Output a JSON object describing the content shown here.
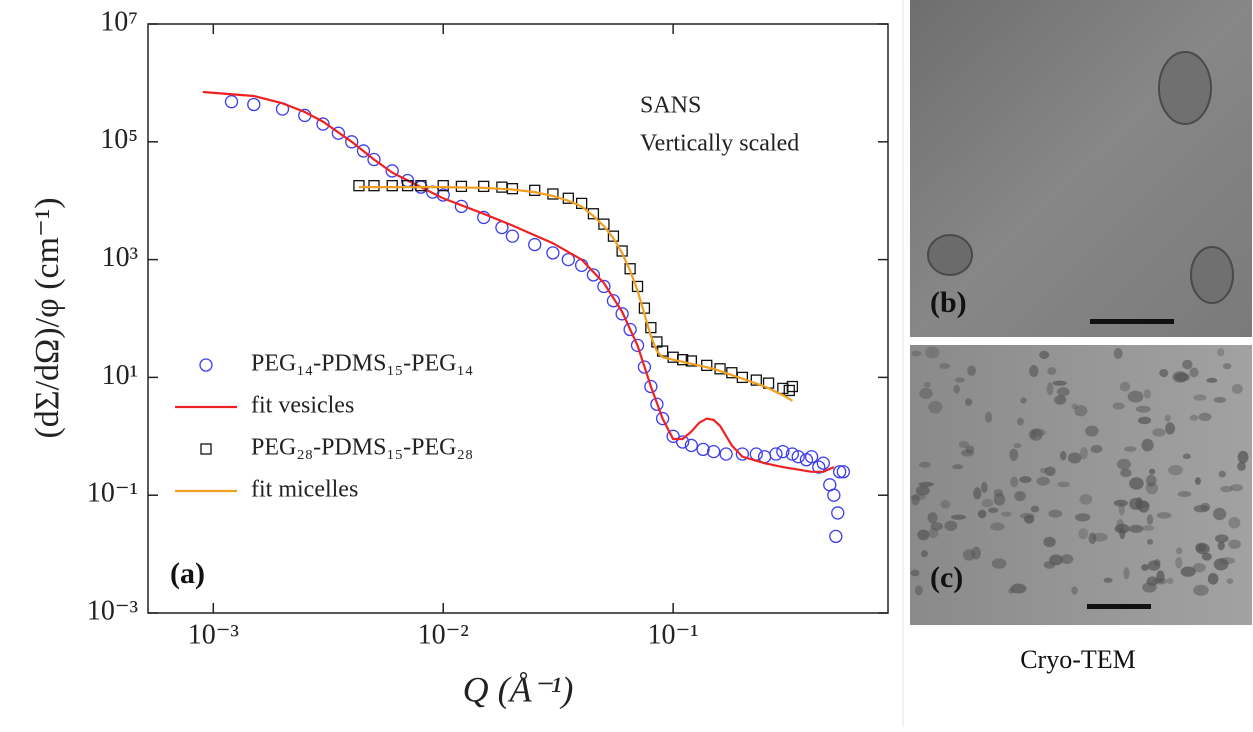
{
  "chart_data": {
    "type": "scatter",
    "xlabel": "Q (Å⁻¹)",
    "ylabel": "(dΣ/dΩ)/φ (cm⁻¹)",
    "annotations": [
      "SANS",
      "Vertically scaled",
      "(a)"
    ],
    "xscale": "log",
    "yscale": "log",
    "xlim": [
      0.00052,
      0.86
    ],
    "ylim": [
      0.001,
      10000000
    ],
    "xticks": [
      {
        "value": 0.001,
        "label": "10⁻³"
      },
      {
        "value": 0.01,
        "label": "10⁻²"
      },
      {
        "value": 0.1,
        "label": "10⁻¹"
      }
    ],
    "yticks": [
      {
        "value": 0.001,
        "label": "10⁻³"
      },
      {
        "value": 0.1,
        "label": "10⁻¹"
      },
      {
        "value": 10,
        "label": "10¹"
      },
      {
        "value": 1000,
        "label": "10³"
      },
      {
        "value": 100000,
        "label": "10⁵"
      },
      {
        "value": 10000000,
        "label": "10⁷"
      }
    ],
    "legend": "center left",
    "series": [
      {
        "name": "PEG₁₄-PDMS₁₅-PEG₁₄",
        "color": "#3b3bf0",
        "mode": "markers",
        "marker": "circle",
        "x": [
          0.0012,
          0.0015,
          0.002,
          0.0025,
          0.003,
          0.0035,
          0.004,
          0.0045,
          0.005,
          0.006,
          0.007,
          0.008,
          0.009,
          0.01,
          0.012,
          0.015,
          0.018,
          0.02,
          0.025,
          0.03,
          0.035,
          0.04,
          0.045,
          0.05,
          0.055,
          0.06,
          0.065,
          0.07,
          0.075,
          0.08,
          0.085,
          0.09,
          0.1,
          0.11,
          0.12,
          0.135,
          0.15,
          0.17,
          0.2,
          0.23,
          0.25,
          0.28,
          0.3,
          0.33,
          0.35,
          0.38,
          0.4,
          0.43,
          0.45,
          0.48,
          0.5,
          0.51,
          0.52,
          0.53,
          0.55
        ],
        "values": [
          480000,
          430000,
          360000,
          280000,
          200000,
          140000,
          100000,
          70000,
          50000,
          32000,
          22000,
          17000,
          14000,
          12500,
          8000,
          5200,
          3500,
          2500,
          1800,
          1300,
          1000,
          800,
          550,
          350,
          200,
          120,
          65,
          35,
          15,
          7,
          3.5,
          2,
          1,
          0.8,
          0.7,
          0.6,
          0.55,
          0.5,
          0.5,
          0.5,
          0.45,
          0.5,
          0.55,
          0.5,
          0.45,
          0.4,
          0.45,
          0.3,
          0.35,
          0.15,
          0.1,
          0.02,
          0.05,
          0.25,
          0.25
        ]
      },
      {
        "name": "fit vesicles",
        "color": "#ee2222",
        "mode": "line",
        "x": [
          0.0009,
          0.0015,
          0.002,
          0.0025,
          0.003,
          0.004,
          0.005,
          0.006,
          0.008,
          0.01,
          0.015,
          0.02,
          0.03,
          0.04,
          0.05,
          0.06,
          0.07,
          0.08,
          0.09,
          0.1,
          0.11,
          0.12,
          0.13,
          0.14,
          0.15,
          0.16,
          0.18,
          0.2,
          0.25,
          0.3,
          0.4,
          0.45,
          0.5
        ],
        "values": [
          700000,
          600000,
          450000,
          320000,
          220000,
          100000,
          50000,
          30000,
          17000,
          11000,
          6000,
          3800,
          1900,
          1000,
          400,
          130,
          35,
          7,
          2,
          0.9,
          0.9,
          1.2,
          1.7,
          2,
          1.9,
          1.5,
          0.7,
          0.45,
          0.35,
          0.3,
          0.25,
          0.25,
          0.3
        ]
      },
      {
        "name": "PEG₂₈-PDMS₁₅-PEG₂₈",
        "color": "#111111",
        "mode": "markers",
        "marker": "square",
        "x": [
          0.0043,
          0.005,
          0.006,
          0.007,
          0.008,
          0.01,
          0.012,
          0.015,
          0.018,
          0.02,
          0.025,
          0.03,
          0.035,
          0.04,
          0.045,
          0.05,
          0.055,
          0.06,
          0.065,
          0.07,
          0.075,
          0.08,
          0.085,
          0.09,
          0.1,
          0.11,
          0.12,
          0.14,
          0.16,
          0.18,
          0.2,
          0.23,
          0.26,
          0.3,
          0.32,
          0.33
        ],
        "values": [
          18000,
          18000,
          18000,
          18000,
          18000,
          18000,
          17500,
          17500,
          17000,
          16000,
          15000,
          13000,
          11000,
          9000,
          6000,
          4000,
          2500,
          1400,
          700,
          350,
          150,
          70,
          40,
          28,
          22,
          20,
          19,
          16,
          14,
          12,
          10,
          9,
          8,
          6.5,
          6,
          7
        ]
      },
      {
        "name": "fit micelles",
        "color": "#f0a020",
        "mode": "line",
        "x": [
          0.0043,
          0.006,
          0.008,
          0.01,
          0.015,
          0.02,
          0.025,
          0.03,
          0.035,
          0.04,
          0.045,
          0.05,
          0.055,
          0.06,
          0.065,
          0.07,
          0.075,
          0.08,
          0.085,
          0.09,
          0.1,
          0.12,
          0.15,
          0.2,
          0.25,
          0.3,
          0.33
        ],
        "values": [
          17000,
          17000,
          17000,
          17000,
          16500,
          15500,
          14000,
          12000,
          10000,
          8000,
          5500,
          3700,
          2300,
          1300,
          650,
          300,
          120,
          50,
          28,
          22,
          20,
          17,
          14,
          9.5,
          7,
          5,
          4
        ]
      }
    ]
  },
  "panels": [
    {
      "label": "(b)"
    },
    {
      "label": "(c)"
    }
  ],
  "caption": "Cryo-TEM"
}
